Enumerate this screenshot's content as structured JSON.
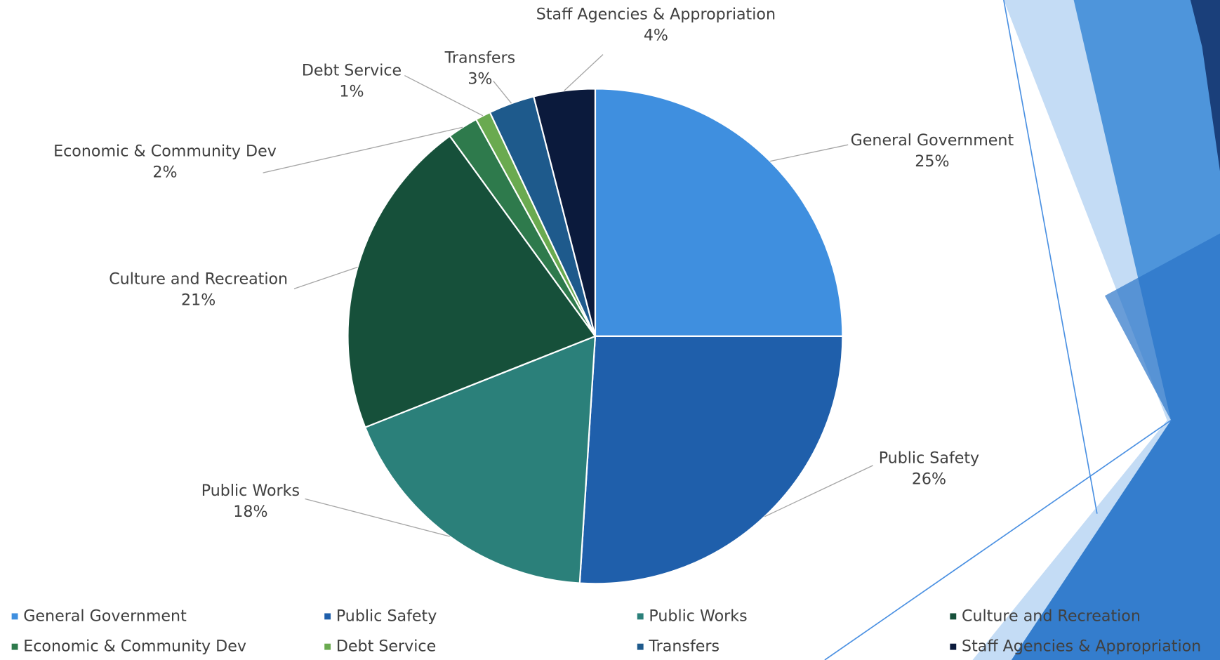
{
  "chart_data": {
    "type": "pie",
    "categories": [
      "General Government",
      "Public Safety",
      "Public Works",
      "Culture and Recreation",
      "Economic & Community Dev",
      "Debt Service",
      "Transfers",
      "Staff Agencies & Appropriation"
    ],
    "values": [
      25,
      26,
      18,
      21,
      2,
      1,
      3,
      4
    ],
    "value_labels": [
      "25%",
      "26%",
      "18%",
      "21%",
      "2%",
      "1%",
      "3%",
      "4%"
    ],
    "colors": [
      "#3f8fdf",
      "#1f5fab",
      "#2b807a",
      "#16503a",
      "#2e7a4c",
      "#6aaa50",
      "#1e5a8c",
      "#0b1a3c"
    ],
    "legend": "bottom"
  }
}
